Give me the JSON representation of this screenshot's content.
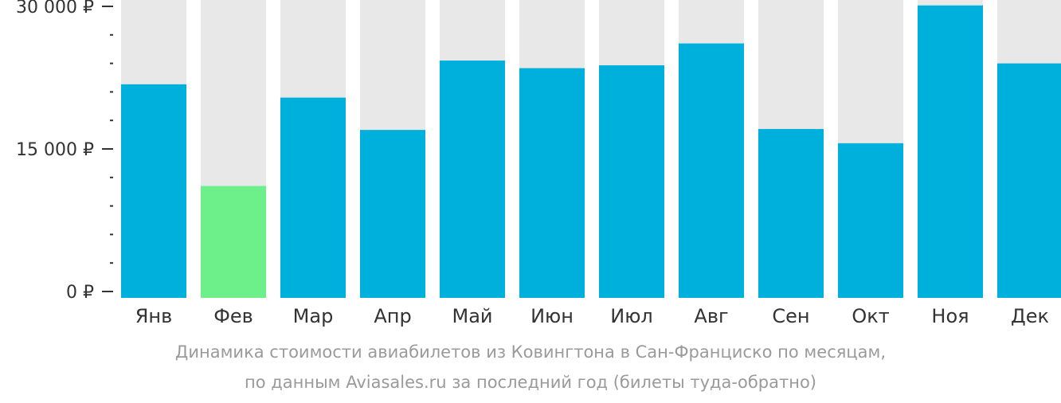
{
  "chart_data": {
    "type": "bar",
    "categories": [
      "Янв",
      "Фев",
      "Мар",
      "Апр",
      "Май",
      "Июн",
      "Июл",
      "Авг",
      "Сен",
      "Окт",
      "Ноя",
      "Дек"
    ],
    "values": [
      21800,
      11100,
      20400,
      17000,
      24300,
      23500,
      23800,
      26100,
      17100,
      15600,
      30100,
      24000
    ],
    "ylim": [
      0,
      30000
    ],
    "yticks": [
      0,
      15000,
      30000
    ],
    "ytick_labels": [
      "0 ₽",
      "15 000 ₽",
      "30 000 ₽"
    ],
    "minor_ticks_per_major": 5,
    "highlight_index": 1,
    "grid": false,
    "colors": {
      "bar": "#00b0dc",
      "highlight": "#6df08a",
      "background_bar": "#e8e8e8",
      "axis": "#333333",
      "caption": "#9a9a9a"
    }
  },
  "caption": {
    "line1": "Динамика стоимости авиабилетов из Ковингтона в Сан-Франциско по месяцам,",
    "line2": "по данным Aviasales.ru за последний год (билеты туда-обратно)"
  }
}
